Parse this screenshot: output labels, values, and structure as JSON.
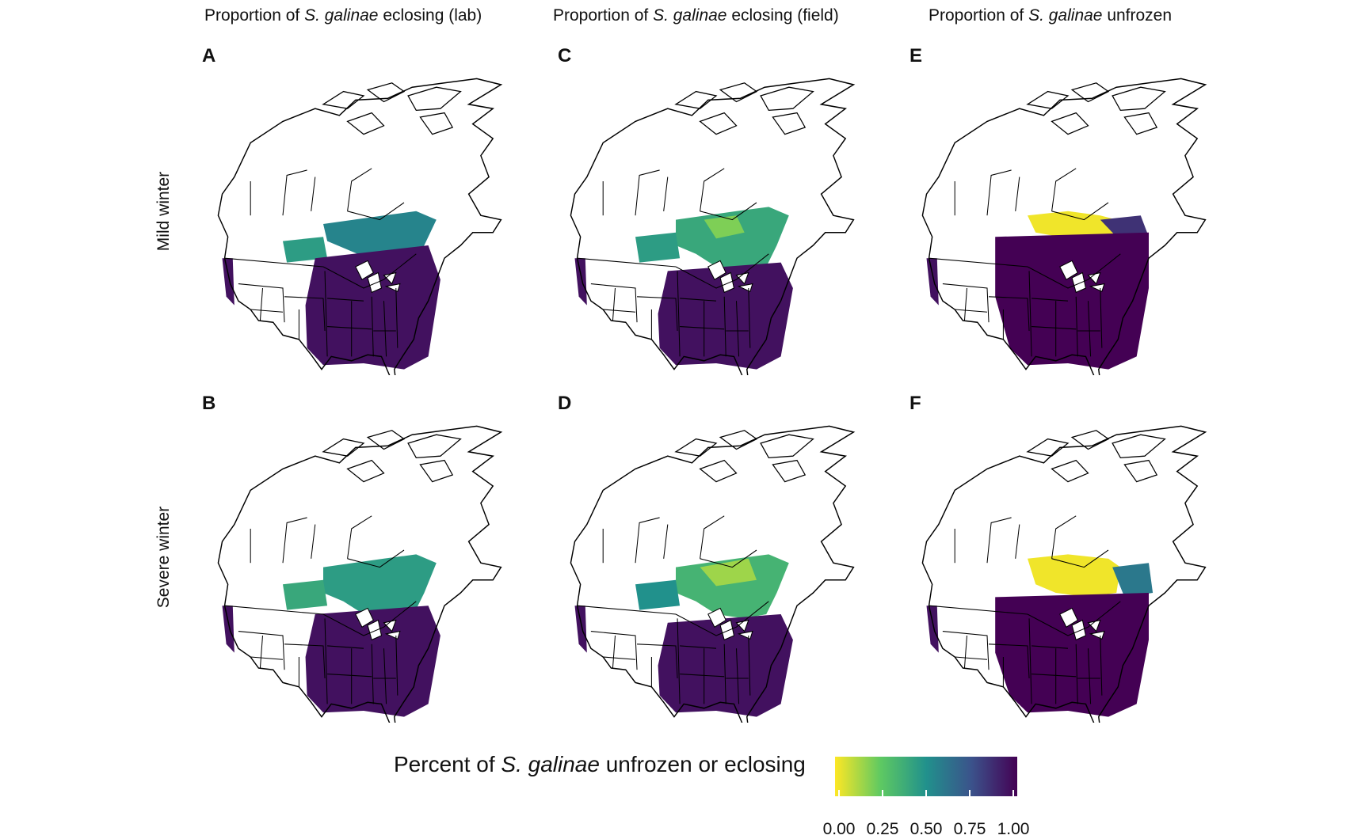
{
  "columns": [
    {
      "prefix": "Proportion of ",
      "species": "S. galinae",
      "suffix": " eclosing (lab)"
    },
    {
      "prefix": "Proportion of ",
      "species": "S. galinae",
      "suffix": " eclosing (field)"
    },
    {
      "prefix": "Proportion of ",
      "species": "S. galinae",
      "suffix": " unfrozen"
    }
  ],
  "rows": [
    {
      "label": "Mild winter"
    },
    {
      "label": "Severe winter"
    }
  ],
  "panels": [
    {
      "letter": "A",
      "scenario": "mild",
      "metric": "eclosing-lab"
    },
    {
      "letter": "B",
      "scenario": "severe",
      "metric": "eclosing-lab"
    },
    {
      "letter": "C",
      "scenario": "mild",
      "metric": "eclosing-field"
    },
    {
      "letter": "D",
      "scenario": "severe",
      "metric": "eclosing-field"
    },
    {
      "letter": "E",
      "scenario": "mild",
      "metric": "unfrozen"
    },
    {
      "letter": "F",
      "scenario": "severe",
      "metric": "unfrozen"
    }
  ],
  "legend": {
    "prefix": "Percent of ",
    "species": "S. galinae",
    "suffix": " unfrozen or eclosing",
    "ticks": [
      "0.00",
      "0.25",
      "0.50",
      "0.75",
      "1.00"
    ],
    "scale": "viridis (reversed)",
    "colors": [
      "#fde725",
      "#5ec962",
      "#21918c",
      "#3b528b",
      "#440154"
    ]
  },
  "region": "Canada and contiguous United States with provincial/state boundaries"
}
